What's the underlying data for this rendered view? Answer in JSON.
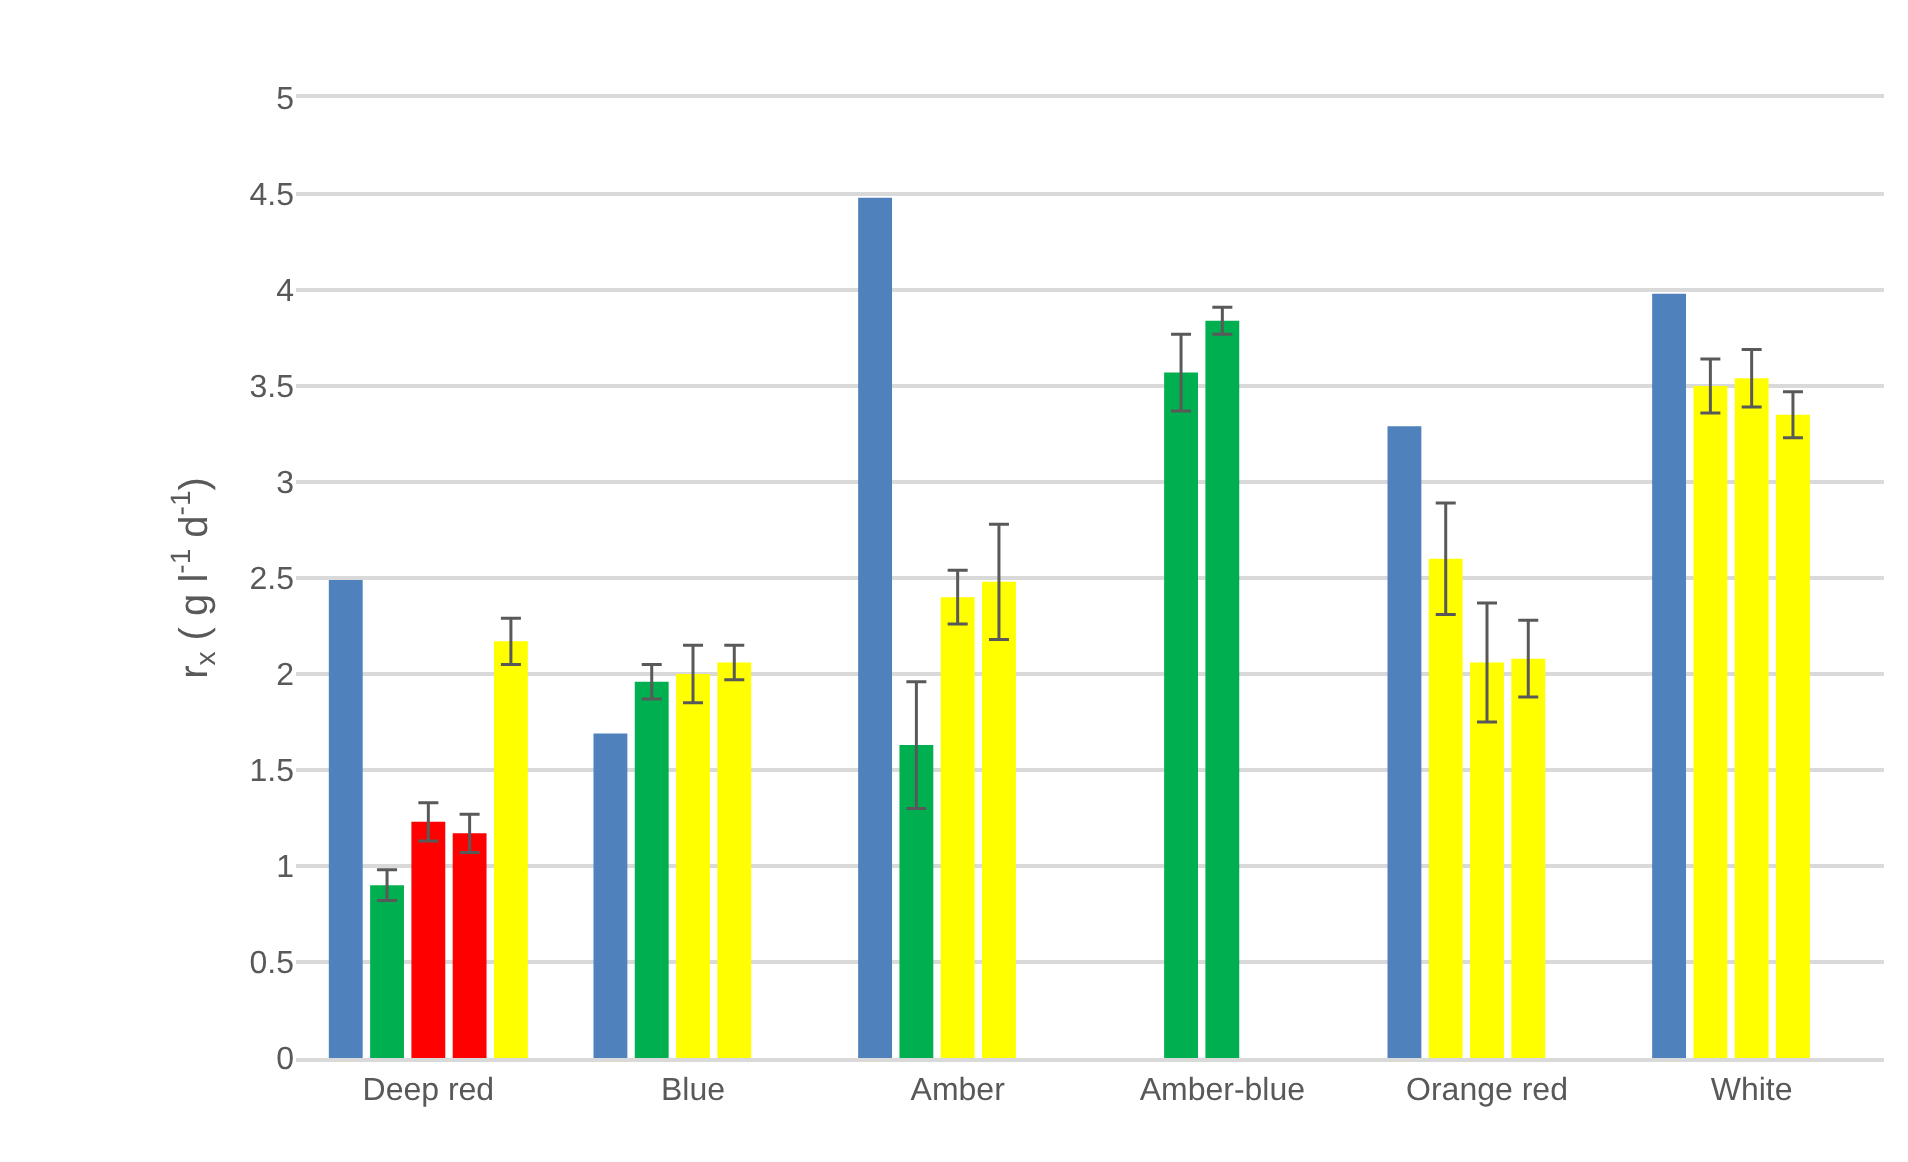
{
  "chart_data": {
    "type": "bar",
    "categories": [
      "Deep red",
      "Blue",
      "Amber",
      "Amber-blue",
      "Orange red",
      "White"
    ],
    "ylabel": "r$_{x}$ ( g l$^{-1}$ d$^{-1}$)",
    "ylim": [
      0,
      5
    ],
    "yticks": [
      0,
      0.5,
      1,
      1.5,
      2,
      2.5,
      3,
      3.5,
      4,
      4.5,
      5
    ],
    "grid": "y",
    "series": [
      {
        "values": [
          2.49,
          1.69,
          4.48,
          null,
          3.29,
          3.98
        ],
        "colors": [
          "#4f81bd",
          "#4f81bd",
          "#4f81bd",
          "#4f81bd",
          "#4f81bd",
          "#4f81bd"
        ]
      },
      {
        "values": [
          0.9,
          1.96,
          1.63,
          3.57,
          2.6,
          3.5
        ],
        "colors": [
          "#00b050",
          "#00b050",
          "#00b050",
          "#00b050",
          "#ffff00",
          "#ffff00"
        ],
        "errors": [
          0.08,
          0.09,
          0.33,
          0.2,
          0.29,
          0.14
        ]
      },
      {
        "values": [
          1.23,
          2.0,
          2.4,
          3.84,
          2.06,
          3.54
        ],
        "colors": [
          "#ff0000",
          "#ffff00",
          "#ffff00",
          "#00b050",
          "#ffff00",
          "#ffff00"
        ],
        "errors": [
          0.1,
          0.15,
          0.14,
          0.07,
          0.31,
          0.15
        ]
      },
      {
        "values": [
          1.17,
          2.06,
          2.48,
          null,
          2.08,
          3.35
        ],
        "colors": [
          "#ff0000",
          "#ffff00",
          "#ffff00",
          "#ffff00",
          "#ffff00",
          "#ffff00"
        ],
        "errors": [
          0.1,
          0.09,
          0.3,
          null,
          0.2,
          0.12
        ]
      },
      {
        "values": [
          2.17,
          null,
          null,
          null,
          null,
          null
        ],
        "colors": [
          "#ffff00",
          "#ffff00",
          "#ffff00",
          "#ffff00",
          "#ffff00",
          "#ffff00"
        ],
        "errors": [
          0.12,
          null,
          null,
          null,
          null,
          null
        ]
      }
    ]
  }
}
